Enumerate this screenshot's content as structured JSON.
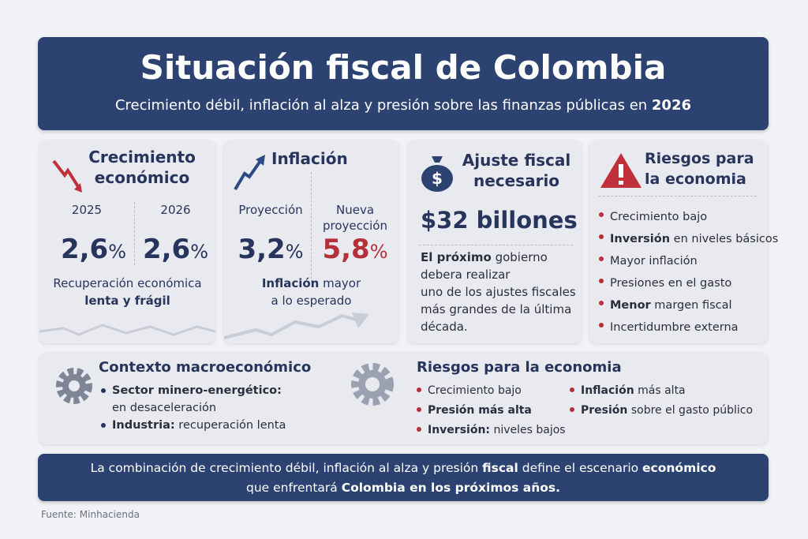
{
  "header": {
    "title": "Situación fiscal de Colombia",
    "subtitle": [
      [
        {
          "t": "Crecimiento débil, inflación al alza y presión sobre las finanzas públicas en "
        },
        {
          "t": "2026",
          "b": true
        }
      ]
    ]
  },
  "cards": [
    {
      "title": [
        "Crecimiento",
        "económico"
      ],
      "stats": [
        {
          "label": "2025",
          "value": "2,6",
          "unit": "%"
        },
        {
          "label": "2026",
          "value": "2,6",
          "unit": "%"
        }
      ],
      "note": [
        [
          {
            "t": "Recuperación económica"
          }
        ],
        [
          {
            "t": "lenta y frágil",
            "b": true
          }
        ]
      ]
    },
    {
      "title": [
        "Inflación"
      ],
      "stats": [
        {
          "label": "Proyección",
          "value": "3,2",
          "unit": "%"
        },
        {
          "label": "Nueva proyección",
          "value": "5,8",
          "unit": "%",
          "color": "#b5313a"
        }
      ],
      "note": [
        [
          {
            "t": "Inflación",
            "b": true
          },
          {
            "t": " mayor"
          }
        ],
        [
          {
            "t": "a lo esperado"
          }
        ]
      ]
    },
    {
      "title": [
        "Ajuste fiscal",
        "necesario"
      ],
      "amount": "$32 billones",
      "note": [
        [
          {
            "t": "El próximo",
            "b": true
          },
          {
            "t": " gobierno"
          }
        ],
        [
          {
            "t": "debera realizar"
          }
        ],
        [
          {
            "t": "uno de los ajustes fiscales"
          }
        ],
        [
          {
            "t": "más grandes de la última"
          }
        ],
        [
          {
            "t": "década."
          }
        ]
      ]
    },
    {
      "title": [
        "Riesgos para",
        "la economia"
      ],
      "items": [
        [
          [
            {
              "t": "Crecimiento bajo"
            }
          ]
        ],
        [
          [
            {
              "t": "Inversión",
              "b": true
            },
            {
              "t": " en niveles básicos"
            }
          ]
        ],
        [
          [
            {
              "t": "Mayor inflación"
            }
          ]
        ],
        [
          [
            {
              "t": "Presiones en el gasto"
            }
          ]
        ],
        [
          [
            {
              "t": "Menor",
              "b": true
            },
            {
              "t": " margen fiscal"
            }
          ]
        ],
        [
          [
            {
              "t": "Incertidumbre externa"
            }
          ]
        ]
      ]
    }
  ],
  "context": {
    "title": "Contexto macroeconómico",
    "items": [
      [
        [
          {
            "t": "Sector minero-energético:",
            "b": true
          }
        ],
        [
          {
            "t": "en desaceleración"
          }
        ]
      ],
      [
        [
          {
            "t": "Industria:",
            "b": true
          },
          {
            "t": " recuperación lenta"
          }
        ]
      ]
    ]
  },
  "risks": {
    "title": "Riesgos para la economia",
    "columns": [
      [
        [
          [
            {
              "t": "Crecimiento bajo"
            }
          ]
        ],
        [
          [
            {
              "t": "Presión más alta",
              "b": true
            }
          ]
        ],
        [
          [
            {
              "t": "Inversión:",
              "b": true
            },
            {
              "t": " niveles bajos"
            }
          ]
        ]
      ],
      [
        [
          [
            {
              "t": "Inflación",
              "b": true
            },
            {
              "t": " más alta"
            }
          ]
        ],
        [
          [
            {
              "t": "Presión",
              "b": true
            },
            {
              "t": " sobre el gasto público"
            }
          ]
        ]
      ]
    ]
  },
  "banner": [
    [
      {
        "t": "La combinación de crecimiento débil, inflación al alza y presión "
      },
      {
        "t": "fiscal",
        "b": true
      },
      {
        "t": " define el escenario "
      },
      {
        "t": "económico",
        "b": true
      }
    ],
    [
      {
        "t": "que enfrentará "
      },
      {
        "t": "Colombia en los próximos años.",
        "b": true
      }
    ]
  ],
  "source": "Fuente: Minhacienda"
}
